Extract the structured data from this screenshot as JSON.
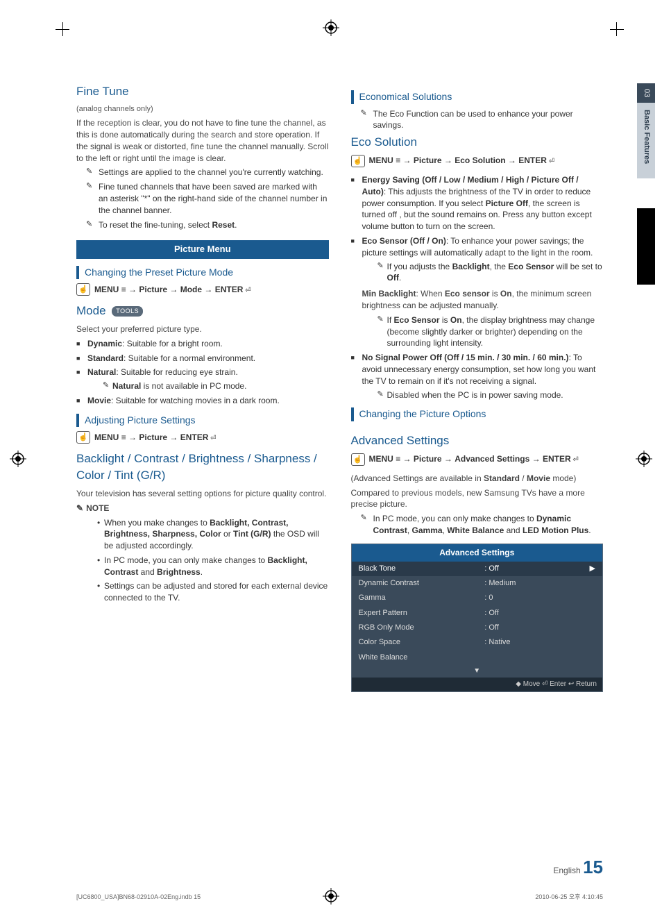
{
  "sideTab": {
    "num": "03",
    "label": "Basic Features"
  },
  "left": {
    "fineTune": {
      "title": "Fine Tune",
      "subtitle": "(analog channels only)",
      "intro": "If the reception is clear, you do not have to fine tune the channel, as this is done automatically during the search and store operation. If the signal is weak or distorted, fine tune the channel manually. Scroll to the left or right until the image is clear.",
      "notes": [
        "Settings are applied to the channel you're currently watching.",
        "Fine tuned channels that have been saved are marked with an asterisk \"*\" on the right-hand side of the channel number in the channel banner.",
        "To reset the fine-tuning, select Reset."
      ]
    },
    "pictureMenuBand": "Picture Menu",
    "presetMode": {
      "title": "Changing the Preset Picture Mode",
      "menuPath": "MENU → Picture → Mode → ENTER"
    },
    "mode": {
      "title": "Mode",
      "toolsBadge": "TOOLS",
      "desc": "Select your preferred picture type.",
      "items": [
        {
          "label": "Dynamic",
          "text": ": Suitable for a bright room."
        },
        {
          "label": "Standard",
          "text": ": Suitable for a normal environment."
        },
        {
          "label": "Natural",
          "text": ": Suitable for reducing eye strain.",
          "sub": "Natural is not available in PC mode."
        },
        {
          "label": "Movie",
          "text": ": Suitable for watching movies in a dark room."
        }
      ]
    },
    "adjusting": {
      "title": "Adjusting Picture Settings",
      "menuPath": "MENU → Picture → ENTER"
    },
    "bcbs": {
      "title": "Backlight / Contrast / Brightness / Sharpness / Color / Tint (G/R)",
      "desc": "Your television has several setting options for picture quality control.",
      "noteLabel": "NOTE",
      "notes": [
        "When you make changes to Backlight, Contrast, Brightness, Sharpness, Color or Tint (G/R) the OSD will be adjusted accordingly.",
        "In PC mode, you can only make changes to Backlight, Contrast and Brightness.",
        "Settings can be adjusted and stored for each external device connected to the TV."
      ]
    }
  },
  "right": {
    "economical": {
      "title": "Economical Solutions",
      "note": "The Eco Function can be used to enhance your power savings."
    },
    "ecoSolution": {
      "title": "Eco Solution",
      "menuPath": "MENU → Picture → Eco Solution → ENTER",
      "energySaving": {
        "label": "Energy Saving (Off / Low / Medium / High / Picture Off / Auto)",
        "text": ": This adjusts the brightness of the TV in order to reduce power consumption. If you select Picture Off, the screen is turned off , but the sound remains on. Press any button except volume button to turn on the screen."
      },
      "ecoSensor": {
        "label": "Eco Sensor (Off / On)",
        "text": ": To enhance your power savings; the picture settings will automatically adapt to the light in the room.",
        "sub1pre": "If you adjusts the ",
        "sub1b1": "Backlight",
        "sub1mid": ", the ",
        "sub1b2": "Eco Sensor",
        "sub1post": " will be set to ",
        "sub1b3": "Off",
        "minBacklight": "Min Backlight: When Eco sensor is On, the minimum screen brightness can be adjusted manually.",
        "sub2": "If Eco Sensor is On, the display brightness may change (become slightly darker or brighter) depending on the surrounding light intensity."
      },
      "noSignal": {
        "label": "No Signal Power Off (Off / 15 min. / 30 min. / 60 min.)",
        "text": ": To avoid unnecessary energy consumption, set how long you want the TV to remain on if it's not receiving a signal.",
        "sub": "Disabled when the PC is in power saving mode."
      }
    },
    "changingOptions": {
      "title": "Changing the Picture Options"
    },
    "advanced": {
      "title": "Advanced Settings",
      "menuPath": "MENU → Picture → Advanced Settings → ENTER",
      "line1": "(Advanced Settings are available in Standard / Movie mode)",
      "line2": "Compared to previous models, new Samsung TVs have a more precise picture.",
      "line3pre": "In PC mode, you can only make changes to ",
      "line3b1": "Dynamic Contrast",
      "line3m1": ", ",
      "line3b2": "Gamma",
      "line3m2": ", ",
      "line3b3": "White Balance",
      "line3m3": " and ",
      "line3b4": "LED Motion Plus",
      "line3post": ".",
      "table": {
        "title": "Advanced Settings",
        "rows": [
          {
            "k": "Black Tone",
            "v": ": Off",
            "highlight": true,
            "arrow": "▶"
          },
          {
            "k": "Dynamic Contrast",
            "v": ": Medium"
          },
          {
            "k": "Gamma",
            "v": ": 0"
          },
          {
            "k": "Expert Pattern",
            "v": ": Off"
          },
          {
            "k": "RGB Only Mode",
            "v": ": Off"
          },
          {
            "k": "Color Space",
            "v": ": Native"
          },
          {
            "k": "White Balance",
            "v": ""
          }
        ],
        "downArrow": "▼",
        "foot": "◆ Move   ⏎ Enter   ↩ Return"
      }
    }
  },
  "pageNum": {
    "lang": "English",
    "num": "15"
  },
  "footer": {
    "left": "[UC6800_USA]BN68-02910A-02Eng.indb   15",
    "right": "2010-06-25   오후 4:10:45"
  }
}
